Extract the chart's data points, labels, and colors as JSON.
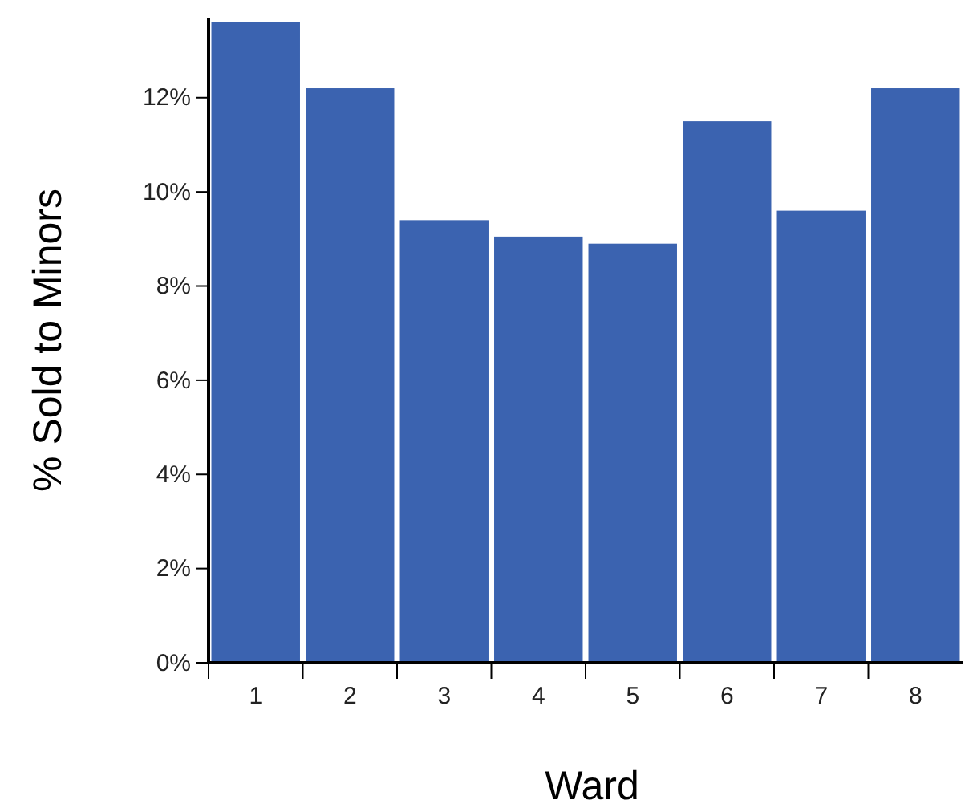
{
  "chart_data": {
    "type": "bar",
    "xlabel": "Ward",
    "ylabel": "% Sold to Minors",
    "categories": [
      "1",
      "2",
      "3",
      "4",
      "5",
      "6",
      "7",
      "8"
    ],
    "values": [
      13.6,
      12.2,
      9.4,
      9.05,
      8.9,
      11.5,
      9.6,
      12.2
    ],
    "color": "#3b63b0",
    "ylim": [
      0,
      13.7
    ],
    "yticks": [
      {
        "value": 0,
        "label": "0%"
      },
      {
        "value": 2,
        "label": "2%"
      },
      {
        "value": 4,
        "label": "4%"
      },
      {
        "value": 6,
        "label": "6%"
      },
      {
        "value": 8,
        "label": "8%"
      },
      {
        "value": 10,
        "label": "10%"
      },
      {
        "value": 12,
        "label": "12%"
      }
    ],
    "grid": false
  }
}
